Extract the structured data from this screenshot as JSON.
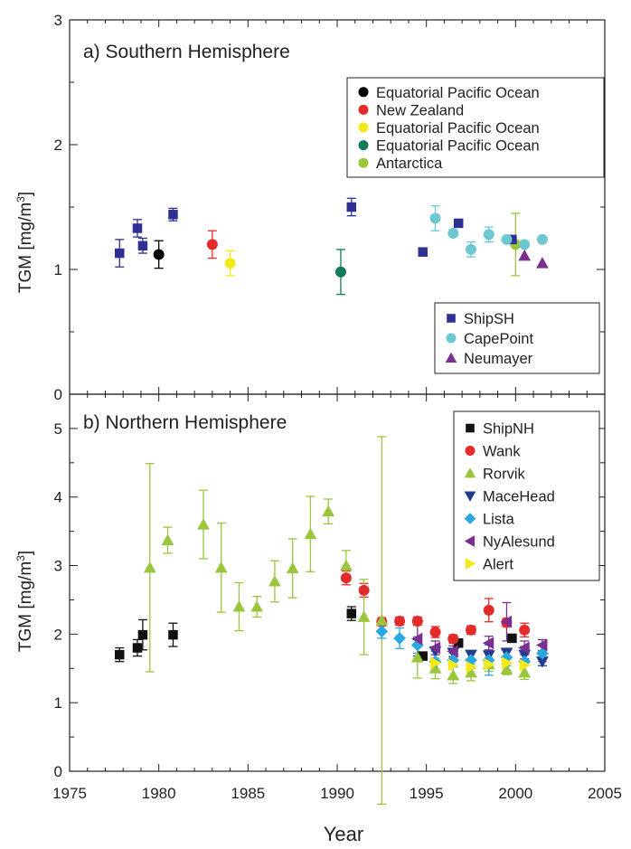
{
  "figure": {
    "xlabel": "Year",
    "ylabel_prefix": "TGM [mg/m",
    "ylabel_sup": "3",
    "ylabel_suffix": "]"
  },
  "chart_data": [
    {
      "type": "scatter",
      "title": "a) Southern Hemisphere",
      "xlabel": "Year",
      "ylabel": "TGM [mg/m3]",
      "xlim": [
        1975,
        2005
      ],
      "ylim": [
        0,
        3
      ],
      "xticks": [
        1975,
        1980,
        1985,
        1990,
        1995,
        2000,
        2005
      ],
      "yticks": [
        0,
        1,
        2,
        3
      ],
      "legends": [
        {
          "placement": "top-right",
          "entries": [
            {
              "label": "Equatorial  Pacific Ocean",
              "color": "#000000",
              "marker": "circle"
            },
            {
              "label": "New Zealand",
              "color": "#e42b2b",
              "marker": "circle"
            },
            {
              "label": "Equatorial Pacific Ocean",
              "color": "#f5e81a",
              "marker": "circle"
            },
            {
              "label": "Equatorial Pacific Ocean",
              "color": "#117a5c",
              "marker": "circle"
            },
            {
              "label": "Antarctica",
              "color": "#9bc53d",
              "marker": "circle"
            }
          ]
        },
        {
          "placement": "bottom-right",
          "entries": [
            {
              "label": "ShipSH",
              "color": "#2e3192",
              "marker": "square"
            },
            {
              "label": "CapePoint",
              "color": "#6dc8d2",
              "marker": "circle"
            },
            {
              "label": "Neumayer",
              "color": "#7b2f8f",
              "marker": "triangle-up"
            }
          ]
        }
      ],
      "series": [
        {
          "name": "Equatorial  Pacific Ocean",
          "color": "#000000",
          "marker": "circle",
          "points": [
            {
              "x": 1980.0,
              "y": 1.12,
              "err": 0.11
            }
          ]
        },
        {
          "name": "New Zealand",
          "color": "#e42b2b",
          "marker": "circle",
          "points": [
            {
              "x": 1983.0,
              "y": 1.2,
              "err": 0.11
            }
          ]
        },
        {
          "name": "Equatorial Pacific Ocean",
          "color": "#f5e81a",
          "marker": "circle",
          "points": [
            {
              "x": 1984.0,
              "y": 1.05,
              "err": 0.1
            }
          ]
        },
        {
          "name": "Equatorial Pacific Ocean",
          "color": "#117a5c",
          "marker": "circle",
          "points": [
            {
              "x": 1990.2,
              "y": 0.98,
              "err": 0.18
            }
          ]
        },
        {
          "name": "Antarctica",
          "color": "#9bc53d",
          "marker": "circle",
          "points": [
            {
              "x": 2000.0,
              "y": 1.2,
              "err": 0.25
            }
          ]
        },
        {
          "name": "ShipSH",
          "color": "#2e3192",
          "marker": "square",
          "points": [
            {
              "x": 1977.8,
              "y": 1.13,
              "err": 0.11
            },
            {
              "x": 1978.8,
              "y": 1.33,
              "err": 0.07
            },
            {
              "x": 1979.1,
              "y": 1.19,
              "err": 0.06
            },
            {
              "x": 1980.8,
              "y": 1.44,
              "err": 0.05
            },
            {
              "x": 1990.8,
              "y": 1.5,
              "err": 0.07
            },
            {
              "x": 1994.8,
              "y": 1.14,
              "err": 0.0
            },
            {
              "x": 1996.8,
              "y": 1.37,
              "err": 0.0
            },
            {
              "x": 1999.8,
              "y": 1.24,
              "err": 0.0
            }
          ]
        },
        {
          "name": "CapePoint",
          "color": "#6dc8d2",
          "marker": "circle",
          "points": [
            {
              "x": 1995.5,
              "y": 1.41,
              "err": 0.1
            },
            {
              "x": 1996.5,
              "y": 1.29,
              "err": 0.0
            },
            {
              "x": 1997.5,
              "y": 1.16,
              "err": 0.06
            },
            {
              "x": 1998.5,
              "y": 1.28,
              "err": 0.06
            },
            {
              "x": 1999.5,
              "y": 1.24,
              "err": 0.0
            },
            {
              "x": 2000.5,
              "y": 1.2,
              "err": 0.0
            },
            {
              "x": 2001.5,
              "y": 1.24,
              "err": 0.0
            }
          ]
        },
        {
          "name": "Neumayer",
          "color": "#7b2f8f",
          "marker": "triangle-up",
          "points": [
            {
              "x": 2000.5,
              "y": 1.11,
              "err": 0.0
            },
            {
              "x": 2001.5,
              "y": 1.05,
              "err": 0.0
            }
          ]
        }
      ]
    },
    {
      "type": "scatter",
      "title": "b) Northern Hemisphere",
      "xlabel": "Year",
      "ylabel": "TGM [mg/m3]",
      "xlim": [
        1975,
        2005
      ],
      "ylim": [
        0,
        5.5
      ],
      "xticks": [
        1975,
        1980,
        1985,
        1990,
        1995,
        2000,
        2005
      ],
      "yticks": [
        0,
        1,
        2,
        3,
        4,
        5
      ],
      "legends": [
        {
          "placement": "top-right",
          "entries": [
            {
              "label": "ShipNH",
              "color": "#111111",
              "marker": "square"
            },
            {
              "label": "Wank",
              "color": "#e42b2b",
              "marker": "circle"
            },
            {
              "label": "Rorvik",
              "color": "#9bc53d",
              "marker": "triangle-up"
            },
            {
              "label": "MaceHead",
              "color": "#243c8f",
              "marker": "triangle-down"
            },
            {
              "label": "Lista",
              "color": "#2aa8e0",
              "marker": "diamond"
            },
            {
              "label": "NyAlesund",
              "color": "#7b2f8f",
              "marker": "triangle-left"
            },
            {
              "label": "Alert",
              "color": "#f5e81a",
              "marker": "triangle-right"
            }
          ]
        }
      ],
      "series": [
        {
          "name": "ShipNH",
          "color": "#111111",
          "marker": "square",
          "points": [
            {
              "x": 1977.8,
              "y": 1.7,
              "err": 0.1
            },
            {
              "x": 1978.8,
              "y": 1.8,
              "err": 0.12
            },
            {
              "x": 1979.1,
              "y": 1.99,
              "err": 0.22
            },
            {
              "x": 1980.8,
              "y": 1.99,
              "err": 0.17
            },
            {
              "x": 1990.8,
              "y": 2.3,
              "err": 0.1
            },
            {
              "x": 1994.8,
              "y": 1.68,
              "err": 0.0
            },
            {
              "x": 1996.8,
              "y": 1.87,
              "err": 0.0
            },
            {
              "x": 1999.8,
              "y": 1.94,
              "err": 0.0
            }
          ]
        },
        {
          "name": "Wank",
          "color": "#e42b2b",
          "marker": "circle",
          "points": [
            {
              "x": 1990.5,
              "y": 2.82,
              "err": 0.1
            },
            {
              "x": 1991.5,
              "y": 2.64,
              "err": 0.1
            },
            {
              "x": 1992.5,
              "y": 2.18,
              "err": 0.06
            },
            {
              "x": 1993.5,
              "y": 2.19,
              "err": 0.06
            },
            {
              "x": 1994.5,
              "y": 2.19,
              "err": 0.06
            },
            {
              "x": 1995.5,
              "y": 2.03,
              "err": 0.08
            },
            {
              "x": 1996.5,
              "y": 1.93,
              "err": 0.06
            },
            {
              "x": 1997.5,
              "y": 2.06,
              "err": 0.06
            },
            {
              "x": 1998.5,
              "y": 2.35,
              "err": 0.17
            },
            {
              "x": 1999.5,
              "y": 2.17,
              "err": 0.06
            },
            {
              "x": 2000.5,
              "y": 2.06,
              "err": 0.1
            }
          ]
        },
        {
          "name": "Rorvik",
          "color": "#9bc53d",
          "marker": "triangle-up",
          "points": [
            {
              "x": 1979.5,
              "y": 2.97,
              "err": 1.52
            },
            {
              "x": 1980.5,
              "y": 3.37,
              "err": 0.19
            },
            {
              "x": 1982.5,
              "y": 3.6,
              "err": 0.5
            },
            {
              "x": 1983.5,
              "y": 2.97,
              "err": 0.65
            },
            {
              "x": 1984.5,
              "y": 2.4,
              "err": 0.35
            },
            {
              "x": 1985.5,
              "y": 2.4,
              "err": 0.15
            },
            {
              "x": 1986.5,
              "y": 2.77,
              "err": 0.3
            },
            {
              "x": 1987.5,
              "y": 2.96,
              "err": 0.43
            },
            {
              "x": 1988.5,
              "y": 3.46,
              "err": 0.55
            },
            {
              "x": 1989.5,
              "y": 3.79,
              "err": 0.18
            },
            {
              "x": 1990.5,
              "y": 3.0,
              "err": 0.22
            },
            {
              "x": 1991.5,
              "y": 2.25,
              "err": 0.55
            },
            {
              "x": 1992.5,
              "y": 2.2,
              "err": 2.68
            },
            {
              "x": 1994.5,
              "y": 1.66,
              "err": 0.3
            },
            {
              "x": 1995.5,
              "y": 1.5,
              "err": 0.15
            },
            {
              "x": 1996.5,
              "y": 1.4,
              "err": 0.12
            },
            {
              "x": 1997.5,
              "y": 1.44,
              "err": 0.12
            },
            {
              "x": 1998.5,
              "y": 1.56,
              "err": 0.1
            },
            {
              "x": 1999.5,
              "y": 1.49,
              "err": 0.08
            },
            {
              "x": 2000.5,
              "y": 1.44,
              "err": 0.1
            }
          ]
        },
        {
          "name": "MaceHead",
          "color": "#243c8f",
          "marker": "triangle-down",
          "points": [
            {
              "x": 1995.5,
              "y": 1.75,
              "err": 0.0
            },
            {
              "x": 1996.5,
              "y": 1.73,
              "err": 0.06
            },
            {
              "x": 1997.5,
              "y": 1.7,
              "err": 0.06
            },
            {
              "x": 1998.5,
              "y": 1.69,
              "err": 0.06
            },
            {
              "x": 1999.5,
              "y": 1.73,
              "err": 0.06
            },
            {
              "x": 2000.5,
              "y": 1.7,
              "err": 0.06
            },
            {
              "x": 2001.5,
              "y": 1.6,
              "err": 0.06
            }
          ]
        },
        {
          "name": "Lista",
          "color": "#2aa8e0",
          "marker": "diamond",
          "points": [
            {
              "x": 1992.5,
              "y": 2.04,
              "err": 0.1
            },
            {
              "x": 1993.5,
              "y": 1.94,
              "err": 0.15
            },
            {
              "x": 1994.5,
              "y": 1.84,
              "err": 0.12
            },
            {
              "x": 1995.5,
              "y": 1.6,
              "err": 0.15
            },
            {
              "x": 1996.5,
              "y": 1.62,
              "err": 0.1
            },
            {
              "x": 1997.5,
              "y": 1.62,
              "err": 0.12
            },
            {
              "x": 1998.5,
              "y": 1.62,
              "err": 0.22
            },
            {
              "x": 1999.5,
              "y": 1.66,
              "err": 0.12
            },
            {
              "x": 2000.5,
              "y": 1.6,
              "err": 0.22
            },
            {
              "x": 2001.5,
              "y": 1.72,
              "err": 0.12
            }
          ]
        },
        {
          "name": "NyAlesund",
          "color": "#7b2f8f",
          "marker": "triangle-left",
          "points": [
            {
              "x": 1994.5,
              "y": 1.93,
              "err": 0.25
            },
            {
              "x": 1995.5,
              "y": 1.8,
              "err": 0.1
            },
            {
              "x": 1996.5,
              "y": 1.75,
              "err": 0.08
            },
            {
              "x": 1998.5,
              "y": 1.87,
              "err": 0.1
            },
            {
              "x": 1999.5,
              "y": 2.18,
              "err": 0.28
            },
            {
              "x": 2000.5,
              "y": 1.8,
              "err": 0.1
            },
            {
              "x": 2001.5,
              "y": 1.84,
              "err": 0.08
            }
          ]
        },
        {
          "name": "Alert",
          "color": "#f5e81a",
          "marker": "triangle-right",
          "points": [
            {
              "x": 1995.5,
              "y": 1.58,
              "err": 0.0
            },
            {
              "x": 1996.5,
              "y": 1.55,
              "err": 0.0
            },
            {
              "x": 1997.5,
              "y": 1.52,
              "err": 0.0
            },
            {
              "x": 1998.5,
              "y": 1.56,
              "err": 0.0
            },
            {
              "x": 1999.5,
              "y": 1.58,
              "err": 0.0
            },
            {
              "x": 2000.5,
              "y": 1.55,
              "err": 0.0
            }
          ]
        }
      ]
    }
  ]
}
